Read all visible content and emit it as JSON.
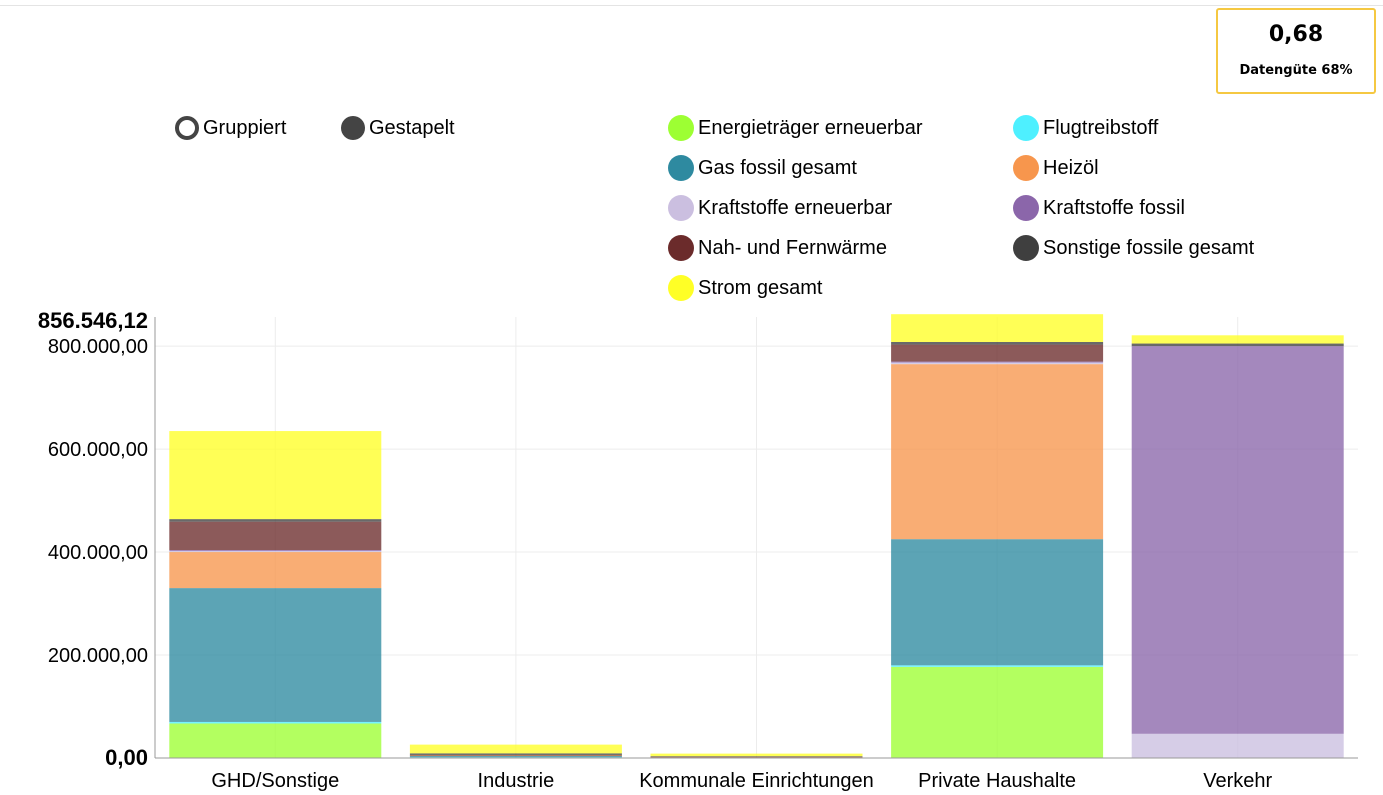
{
  "quality": {
    "value": "0,68",
    "label": "Datengüte 68%"
  },
  "mode_toggle": {
    "options": [
      {
        "label": "Gruppiert",
        "selected": false
      },
      {
        "label": "Gestapelt",
        "selected": true
      }
    ]
  },
  "chart_data": {
    "type": "bar",
    "stacked": true,
    "categories": [
      "GHD/Sonstige",
      "Industrie",
      "Kommunale Einrichtungen",
      "Private Haushalte",
      "Verkehr"
    ],
    "ylim": [
      0,
      856546.12
    ],
    "y_max_label": "856.546,12",
    "y_ticks": [
      {
        "value": 0,
        "label": "0,00"
      },
      {
        "value": 200000,
        "label": "200.000,00"
      },
      {
        "value": 400000,
        "label": "400.000,00"
      },
      {
        "value": 600000,
        "label": "600.000,00"
      },
      {
        "value": 800000,
        "label": "800.000,00"
      }
    ],
    "grid": true,
    "legend_position": "top-right",
    "series": [
      {
        "name": "Energieträger erneuerbar",
        "color": "#9dff33",
        "values": [
          67000,
          1000,
          500,
          177000,
          0
        ]
      },
      {
        "name": "Flugtreibstoff",
        "color": "#4ef0ff",
        "values": [
          3000,
          500,
          0,
          3000,
          0
        ]
      },
      {
        "name": "Gas fossil gesamt",
        "color": "#2e8aa0",
        "values": [
          260000,
          3000,
          500,
          245000,
          0
        ]
      },
      {
        "name": "Heizöl",
        "color": "#f7964d",
        "values": [
          70000,
          500,
          500,
          340000,
          0
        ]
      },
      {
        "name": "Kraftstoffe erneuerbar",
        "color": "#cbbfe0",
        "values": [
          2000,
          0,
          0,
          3000,
          47000
        ]
      },
      {
        "name": "Kraftstoffe fossil",
        "color": "#8b66aa",
        "values": [
          2000,
          0,
          0,
          2000,
          753000
        ]
      },
      {
        "name": "Nah- und Fernwärme",
        "color": "#6b2b2b",
        "values": [
          55000,
          1000,
          1000,
          33000,
          0
        ]
      },
      {
        "name": "Sonstige fossile gesamt",
        "color": "#3f3f3f",
        "values": [
          5000,
          3000,
          1000,
          5000,
          5000
        ]
      },
      {
        "name": "Strom gesamt",
        "color": "#ffff26",
        "values": [
          171000,
          17000,
          5000,
          54000,
          16000
        ]
      }
    ]
  }
}
